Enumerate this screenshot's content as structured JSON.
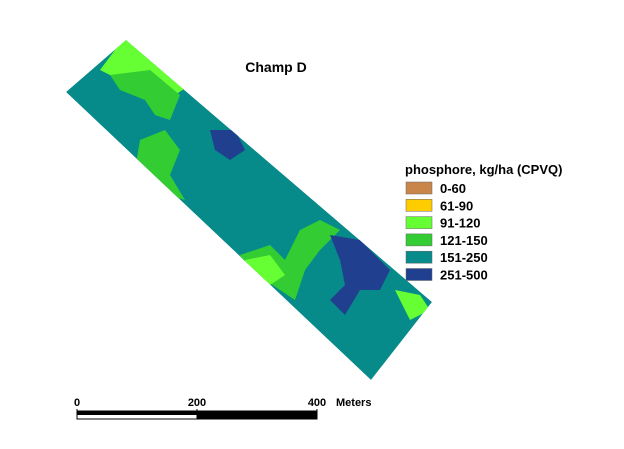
{
  "title": "Champ D",
  "legend": {
    "title": "phosphore, kg/ha (CPVQ)",
    "items": [
      {
        "label": "0-60",
        "color": "#c8864a"
      },
      {
        "label": "61-90",
        "color": "#ffcc00"
      },
      {
        "label": "91-120",
        "color": "#66ff33"
      },
      {
        "label": "121-150",
        "color": "#33cc33"
      },
      {
        "label": "151-250",
        "color": "#078a8a"
      },
      {
        "label": "251-500",
        "color": "#20408f"
      }
    ]
  },
  "scale_bar": {
    "ticks": [
      0,
      200,
      400
    ],
    "unit": "Meters"
  }
}
